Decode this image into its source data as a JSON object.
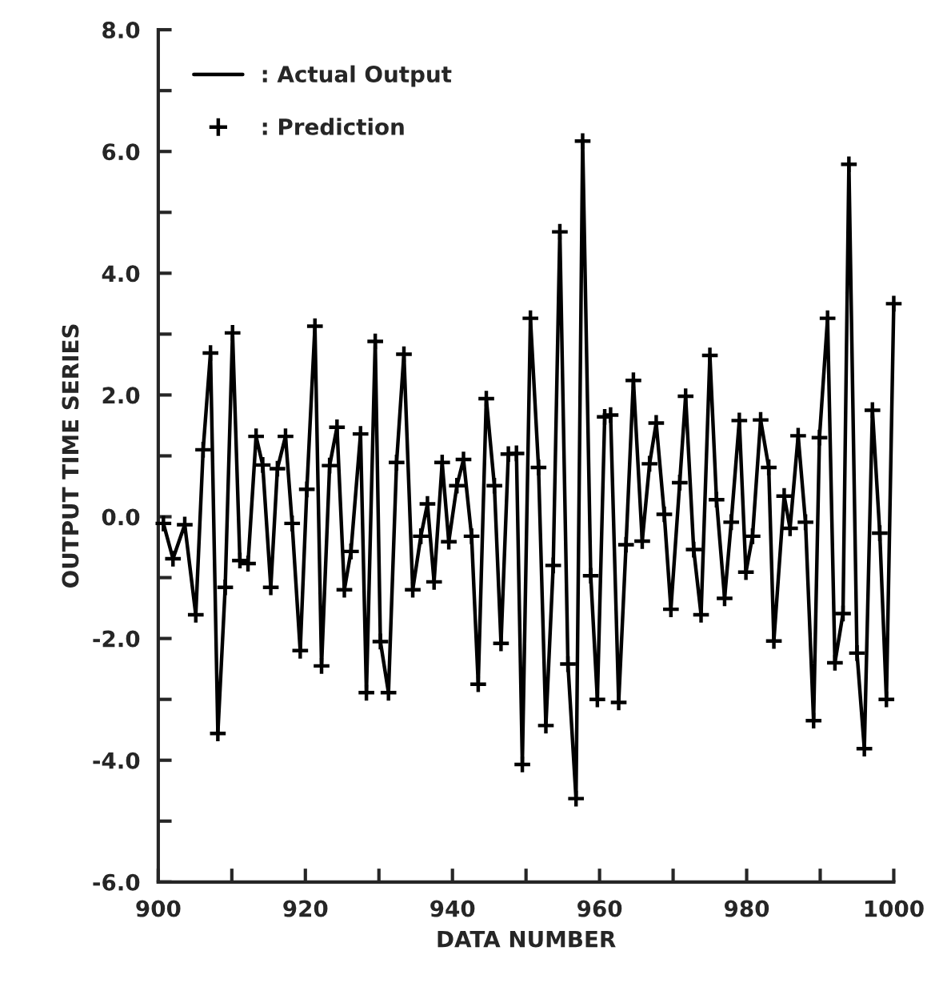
{
  "chart_data": {
    "type": "line",
    "xlabel": "DATA NUMBER",
    "ylabel": "OUTPUT TIME SERIES",
    "x": [
      900.7,
      902.0,
      903.6,
      905.1,
      906.1,
      907.1,
      908.1,
      909.1,
      910.1,
      911.1,
      912.2,
      913.3,
      914.2,
      915.3,
      916.2,
      917.3,
      918.2,
      919.3,
      920.2,
      921.3,
      922.2,
      923.3,
      924.3,
      925.3,
      926.2,
      927.5,
      928.3,
      929.5,
      930.2,
      931.3,
      932.4,
      933.4,
      934.6,
      935.7,
      936.6,
      937.5,
      938.6,
      939.5,
      940.6,
      941.5,
      942.6,
      943.5,
      944.6,
      945.7,
      946.6,
      947.6,
      948.7,
      949.5,
      950.6,
      951.7,
      952.7,
      953.7,
      954.6,
      955.7,
      956.8,
      957.7,
      958.8,
      959.7,
      960.7,
      961.5,
      962.6,
      963.6,
      964.6,
      965.8,
      966.8,
      967.7,
      968.8,
      969.7,
      970.9,
      971.7,
      972.8,
      973.8,
      975.0,
      975.9,
      977.0,
      977.9,
      979.0,
      979.9,
      980.8,
      981.9,
      983.0,
      983.7,
      985.1,
      985.9,
      987.0,
      988.0,
      989.1,
      989.9,
      991.0,
      992.0,
      993.1,
      993.9,
      995.0,
      996.0,
      997.1,
      998.1,
      999.0,
      1000.0
    ],
    "series": [
      {
        "name": ": Actual Output",
        "color": "#000000",
        "line_style": "solid",
        "marker": "none",
        "values": [
          -0.11,
          -0.69,
          -0.13,
          -1.61,
          1.1,
          2.69,
          -3.56,
          -1.16,
          3.02,
          -0.72,
          -0.77,
          1.32,
          0.85,
          -1.16,
          0.79,
          1.32,
          -0.11,
          -2.2,
          0.45,
          3.13,
          -2.45,
          0.84,
          1.47,
          -1.2,
          -0.57,
          1.36,
          -2.89,
          2.88,
          -2.05,
          -2.89,
          0.89,
          2.67,
          -1.2,
          -0.32,
          0.21,
          -1.07,
          0.89,
          -0.41,
          0.51,
          0.94,
          -0.32,
          -2.75,
          1.94,
          0.51,
          -2.08,
          1.03,
          1.04,
          -4.07,
          3.26,
          0.81,
          -3.43,
          -0.8,
          4.68,
          -2.42,
          -4.63,
          6.17,
          -0.97,
          -3.0,
          1.64,
          1.67,
          -3.05,
          -0.46,
          2.24,
          -0.4,
          0.87,
          1.54,
          0.04,
          -1.52,
          0.56,
          1.98,
          -0.54,
          -1.61,
          2.65,
          0.28,
          -1.34,
          -0.09,
          1.58,
          -0.91,
          -0.32,
          1.59,
          0.81,
          -2.04,
          0.34,
          -0.19,
          1.33,
          -0.09,
          -3.35,
          1.3,
          3.26,
          -2.4,
          -1.59,
          5.79,
          -2.24,
          -3.81,
          1.75,
          -0.27,
          -3.0,
          3.5
        ]
      },
      {
        "name": ": Prediction",
        "type": "scatter",
        "color": "#000000",
        "marker": "cross",
        "values": [
          -0.11,
          -0.69,
          -0.13,
          -1.61,
          1.1,
          2.69,
          -3.56,
          -1.16,
          3.02,
          -0.72,
          -0.77,
          1.32,
          0.85,
          -1.16,
          0.79,
          1.32,
          -0.11,
          -2.2,
          0.45,
          3.13,
          -2.45,
          0.84,
          1.47,
          -1.2,
          -0.57,
          1.36,
          -2.89,
          2.88,
          -2.05,
          -2.89,
          0.89,
          2.67,
          -1.2,
          -0.32,
          0.21,
          -1.07,
          0.89,
          -0.41,
          0.51,
          0.94,
          -0.32,
          -2.75,
          1.94,
          0.51,
          -2.08,
          1.03,
          1.04,
          -4.07,
          3.26,
          0.81,
          -3.43,
          -0.8,
          4.68,
          -2.42,
          -4.63,
          6.17,
          -0.97,
          -3.0,
          1.64,
          1.67,
          -3.05,
          -0.46,
          2.24,
          -0.4,
          0.87,
          1.54,
          0.04,
          -1.52,
          0.56,
          1.98,
          -0.54,
          -1.61,
          2.65,
          0.28,
          -1.34,
          -0.09,
          1.58,
          -0.91,
          -0.32,
          1.59,
          0.81,
          -2.04,
          0.34,
          -0.19,
          1.33,
          -0.09,
          -3.35,
          1.3,
          3.26,
          -2.4,
          -1.59,
          5.79,
          -2.24,
          -3.81,
          1.75,
          -0.27,
          -3.0,
          3.5
        ]
      }
    ],
    "xlim": [
      900,
      1000
    ],
    "xticks": [
      900,
      {
        "value": 910,
        "label": null
      },
      920,
      {
        "value": 930,
        "label": null
      },
      940,
      {
        "value": 950,
        "label": null
      },
      960,
      {
        "value": 970,
        "label": null
      },
      980,
      {
        "value": 990,
        "label": null
      },
      1000
    ],
    "ylim": [
      -6,
      8
    ],
    "yticks": [
      {
        "value": -6,
        "label": "-6.0"
      },
      {
        "value": -5,
        "label": null
      },
      {
        "value": -4,
        "label": "-4.0"
      },
      {
        "value": -3,
        "label": null
      },
      {
        "value": -2,
        "label": "-2.0"
      },
      {
        "value": -1,
        "label": null
      },
      {
        "value": 0,
        "label": "0.0"
      },
      {
        "value": 1,
        "label": null
      },
      {
        "value": 2,
        "label": "2.0"
      },
      {
        "value": 3,
        "label": null
      },
      {
        "value": 4,
        "label": "4.0"
      },
      {
        "value": 5,
        "label": null
      },
      {
        "value": 6,
        "label": "6.0"
      },
      {
        "value": 7,
        "label": null
      },
      {
        "value": 8,
        "label": "8.0"
      }
    ],
    "grid": false,
    "legend": "top left"
  }
}
